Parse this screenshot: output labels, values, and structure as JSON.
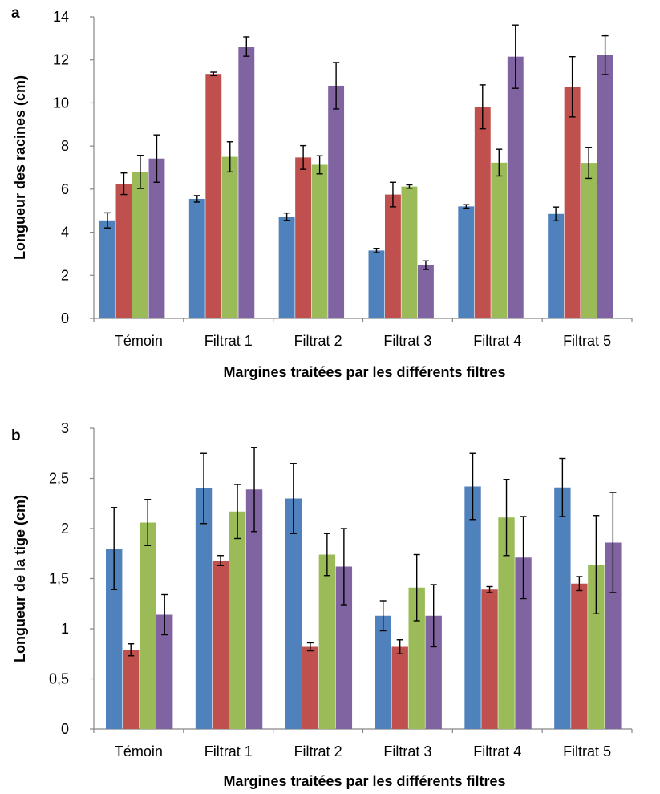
{
  "chart_data": [
    {
      "type": "bar",
      "panel_label": "a",
      "categories": [
        "Témoin",
        "Filtrat 1",
        "Filtrat 2",
        "Filtrat 3",
        "Filtrat 4",
        "Filtrat 5"
      ],
      "series": [
        {
          "values": [
            4.55,
            5.55,
            4.72,
            3.15,
            5.2,
            4.85
          ],
          "errors": [
            0.35,
            0.15,
            0.17,
            0.1,
            0.08,
            0.32
          ],
          "color": "#4F81BD"
        },
        {
          "values": [
            6.25,
            11.35,
            7.47,
            5.75,
            9.82,
            10.75
          ],
          "errors": [
            0.5,
            0.08,
            0.55,
            0.57,
            1.02,
            1.4
          ],
          "color": "#C0504D"
        },
        {
          "values": [
            6.8,
            7.5,
            7.13,
            6.12,
            7.23,
            7.22
          ],
          "errors": [
            0.77,
            0.7,
            0.42,
            0.08,
            0.62,
            0.72
          ],
          "color": "#9BBB59"
        },
        {
          "values": [
            7.42,
            12.62,
            10.8,
            2.47,
            12.15,
            12.22
          ],
          "errors": [
            1.1,
            0.45,
            1.08,
            0.2,
            1.47,
            0.9
          ],
          "color": "#8064A2"
        }
      ],
      "xlabel": "Margines traitées par les différents filtres",
      "ylabel": "Longueur des racines (cm)",
      "ylim": [
        0,
        14
      ],
      "yticks": [
        0,
        2,
        4,
        6,
        8,
        10,
        12,
        14
      ],
      "ytick_labels": [
        "0",
        "2",
        "4",
        "6",
        "8",
        "10",
        "12",
        "14"
      ],
      "grid": false,
      "legend": "none"
    },
    {
      "type": "bar",
      "panel_label": "b",
      "categories": [
        "Témoin",
        "Filtrat 1",
        "Filtrat 2",
        "Filtrat 3",
        "Filtrat 4",
        "Filtrat 5"
      ],
      "series": [
        {
          "values": [
            1.8,
            2.4,
            2.3,
            1.13,
            2.42,
            2.41
          ],
          "errors": [
            0.41,
            0.35,
            0.35,
            0.15,
            0.33,
            0.29
          ],
          "color": "#4F81BD"
        },
        {
          "values": [
            0.79,
            1.68,
            0.82,
            0.82,
            1.39,
            1.45
          ],
          "errors": [
            0.06,
            0.05,
            0.04,
            0.07,
            0.03,
            0.07
          ],
          "color": "#C0504D"
        },
        {
          "values": [
            2.06,
            2.17,
            1.74,
            1.41,
            2.11,
            1.64
          ],
          "errors": [
            0.23,
            0.27,
            0.21,
            0.33,
            0.38,
            0.49
          ],
          "color": "#9BBB59"
        },
        {
          "values": [
            1.14,
            2.39,
            1.62,
            1.13,
            1.71,
            1.86
          ],
          "errors": [
            0.2,
            0.42,
            0.38,
            0.31,
            0.41,
            0.5
          ],
          "color": "#8064A2"
        }
      ],
      "xlabel": "Margines traitées par les différents filtres",
      "ylabel": "Longueur de la tige (cm)",
      "ylim": [
        0,
        3
      ],
      "yticks": [
        0,
        0.5,
        1,
        1.5,
        2,
        2.5,
        3
      ],
      "ytick_labels": [
        "0",
        "0,5",
        "1",
        "1,5",
        "2",
        "2,5",
        "3"
      ],
      "grid": false,
      "legend": "none"
    }
  ]
}
